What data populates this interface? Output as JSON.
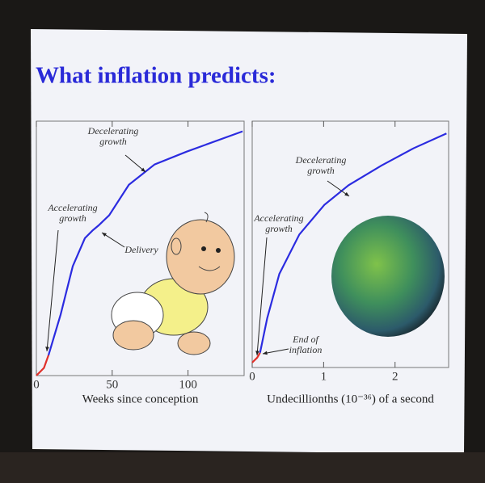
{
  "title": "What inflation predicts:",
  "chart_data": [
    {
      "type": "line",
      "x_label": "Weeks since conception",
      "x": [
        0,
        5,
        8,
        16,
        24,
        32,
        37,
        41,
        48,
        61,
        78,
        99,
        136
      ],
      "series": [
        {
          "color": "#e0302a",
          "values": [
            0,
            3,
            8,
            null,
            null,
            null,
            null,
            null,
            null,
            null,
            null,
            null,
            null
          ]
        },
        {
          "color": "#2b2be0",
          "values": [
            null,
            null,
            8,
            24,
            43,
            54,
            57,
            59,
            63,
            75,
            83,
            88,
            96
          ]
        }
      ],
      "xlim": [
        0,
        137
      ],
      "ylim": [
        0,
        100
      ],
      "xticks": [
        0,
        50,
        100
      ],
      "annotations": [
        [
          "Decelerating",
          "growth"
        ],
        [
          "Accelerating",
          "growth"
        ],
        [
          "Delivery"
        ]
      ]
    },
    {
      "type": "line",
      "x_label": "Undecillionths (10⁻³⁶) of a second",
      "x": [
        0,
        0.07,
        0.11,
        0.21,
        0.38,
        0.66,
        1.01,
        1.35,
        1.81,
        2.26,
        2.72
      ],
      "series": [
        {
          "color": "#e0302a",
          "values": [
            2,
            4,
            6,
            null,
            null,
            null,
            null,
            null,
            null,
            null,
            null
          ]
        },
        {
          "color": "#2b2be0",
          "values": [
            null,
            null,
            6,
            20,
            38,
            54,
            66,
            74,
            82,
            89,
            95
          ]
        }
      ],
      "xlim": [
        0,
        2.75
      ],
      "ylim": [
        0,
        100
      ],
      "xticks": [
        0,
        1,
        2
      ],
      "annotations": [
        [
          "Decelerating",
          "growth"
        ],
        [
          "Accelerating",
          "growth"
        ],
        [
          "End of",
          "inflation"
        ]
      ]
    }
  ]
}
